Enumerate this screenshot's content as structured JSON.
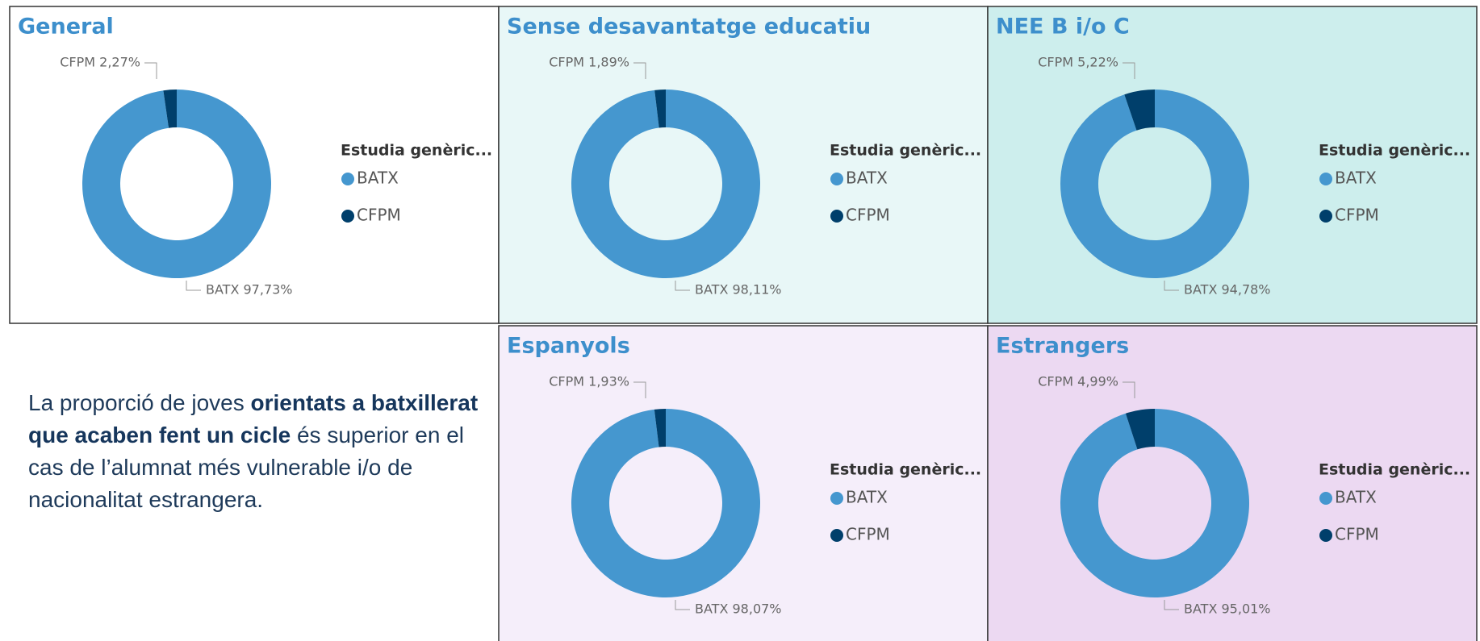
{
  "chart_data": [
    {
      "type": "pie",
      "title": "General",
      "legend_title": "Estudia genèric...",
      "categories": [
        "BATX",
        "CFPM"
      ],
      "values": [
        97.73,
        2.27
      ],
      "value_labels": [
        "BATX 97,73%",
        "CFPM 2,27%"
      ],
      "colors": [
        "#4597cf",
        "#003f6b"
      ],
      "background": "#ffffff"
    },
    {
      "type": "pie",
      "title": "Sense desavantatge educatiu",
      "legend_title": "Estudia genèric...",
      "categories": [
        "BATX",
        "CFPM"
      ],
      "values": [
        98.11,
        1.89
      ],
      "value_labels": [
        "BATX 98,11%",
        "CFPM 1,89%"
      ],
      "colors": [
        "#4597cf",
        "#003f6b"
      ],
      "background": "#e8f7f7"
    },
    {
      "type": "pie",
      "title": "NEE B i/o C",
      "legend_title": "Estudia genèric...",
      "categories": [
        "BATX",
        "CFPM"
      ],
      "values": [
        94.78,
        5.22
      ],
      "value_labels": [
        "BATX 94,78%",
        "CFPM 5,22%"
      ],
      "colors": [
        "#4597cf",
        "#003f6b"
      ],
      "background": "#cdeeed"
    },
    {
      "type": "pie",
      "title": "Espanyols",
      "legend_title": "Estudia genèric...",
      "categories": [
        "BATX",
        "CFPM"
      ],
      "values": [
        98.07,
        1.93
      ],
      "value_labels": [
        "BATX 98,07%",
        "CFPM 1,93%"
      ],
      "colors": [
        "#4597cf",
        "#003f6b"
      ],
      "background": "#f5eefa"
    },
    {
      "type": "pie",
      "title": "Estrangers",
      "legend_title": "Estudia genèric...",
      "categories": [
        "BATX",
        "CFPM"
      ],
      "values": [
        95.01,
        4.99
      ],
      "value_labels": [
        "BATX 95,01%",
        "CFPM 4,99%"
      ],
      "colors": [
        "#4597cf",
        "#003f6b"
      ],
      "background": "#ecd9f2"
    }
  ],
  "note": [
    {
      "text": "La proporció de joves ",
      "bold": false
    },
    {
      "text": "orientats a batxillerat que acaben fent un cicle",
      "bold": true
    },
    {
      "text": " és superior en el cas de l’alumnat més vulnerable i/o de nacionalitat estrangera.",
      "bold": false
    }
  ]
}
